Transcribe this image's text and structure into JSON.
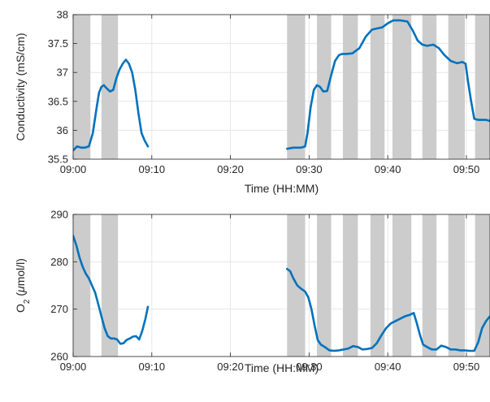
{
  "colors": {
    "line": "#0072bd",
    "band": "#cccccc",
    "grid": "#e6e6e6",
    "axis": "#262626"
  },
  "chart_data": [
    {
      "type": "line",
      "ylabel": "Conductivity (mS/cm)",
      "xlabel": "Time (HH:MM)",
      "xlim": [
        0,
        53
      ],
      "ylim": [
        35.5,
        38
      ],
      "x_ticks": [
        0,
        10,
        20,
        30,
        40,
        50
      ],
      "x_tick_labels": [
        "09:00",
        "09:10",
        "09:20",
        "09:30",
        "09:40",
        "09:50"
      ],
      "y_ticks": [
        35.5,
        36,
        36.5,
        37,
        37.5,
        38
      ],
      "y_tick_labels": [
        "35.5",
        "36",
        "36.5",
        "37",
        "37.5",
        "38"
      ],
      "grid": true,
      "shaded_intervals": [
        [
          0,
          2.2
        ],
        [
          3.6,
          5.7
        ],
        [
          27.2,
          29.5
        ],
        [
          31.0,
          32.8
        ],
        [
          34.3,
          36.2
        ],
        [
          37.8,
          39.6
        ],
        [
          40.6,
          43.0
        ],
        [
          44.4,
          46.2
        ],
        [
          47.7,
          49.8
        ],
        [
          51.1,
          53
        ]
      ],
      "segments": [
        {
          "x": [
            0.0,
            0.5,
            1.0,
            1.5,
            2.0,
            2.5,
            3.0,
            3.3,
            3.6,
            3.9,
            4.3,
            4.7,
            5.1,
            5.5,
            5.9,
            6.3,
            6.7,
            7.1,
            7.5,
            7.9,
            8.3,
            8.7,
            9.1,
            9.5
          ],
          "y": [
            35.65,
            35.72,
            35.7,
            35.7,
            35.72,
            35.95,
            36.4,
            36.65,
            36.75,
            36.78,
            36.72,
            36.67,
            36.7,
            36.9,
            37.05,
            37.15,
            37.22,
            37.15,
            37.0,
            36.7,
            36.3,
            35.95,
            35.82,
            35.72
          ]
        },
        {
          "x": [
            27.2,
            28.0,
            29.0,
            29.5,
            29.8,
            30.2,
            30.6,
            31.0,
            31.4,
            31.8,
            32.3,
            32.8,
            33.3,
            33.8,
            34.2,
            34.7,
            35.5,
            36.4,
            37.2,
            38.0,
            38.6,
            39.3,
            40.0,
            40.7,
            41.6,
            42.5,
            43.2,
            43.8,
            44.4,
            45.0,
            45.8,
            46.5,
            47.2,
            48.0,
            48.8,
            49.5,
            49.9,
            50.2,
            50.6,
            51.0,
            51.5,
            52.0,
            52.5,
            53.0
          ],
          "y": [
            35.68,
            35.7,
            35.7,
            35.72,
            35.95,
            36.4,
            36.7,
            36.78,
            36.75,
            36.67,
            36.68,
            36.95,
            37.2,
            37.3,
            37.32,
            37.32,
            37.33,
            37.42,
            37.62,
            37.74,
            37.76,
            37.78,
            37.85,
            37.9,
            37.9,
            37.88,
            37.72,
            37.55,
            37.48,
            37.46,
            37.48,
            37.42,
            37.3,
            37.2,
            37.16,
            37.18,
            37.15,
            36.85,
            36.5,
            36.2,
            36.18,
            36.18,
            36.18,
            36.16
          ]
        }
      ]
    },
    {
      "type": "line",
      "ylabel_main": "O",
      "ylabel_sub": "2",
      "ylabel_rest": " (",
      "ylabel_mu": "μ",
      "ylabel_unit": "mol/l)",
      "xlabel": "Time (HH:MM)",
      "xlim": [
        0,
        53
      ],
      "ylim": [
        260,
        290
      ],
      "x_ticks": [
        0,
        10,
        20,
        30,
        40,
        50
      ],
      "x_tick_labels": [
        "09:00",
        "09:10",
        "09:20",
        "09:30",
        "09:40",
        "09:50"
      ],
      "y_ticks": [
        260,
        270,
        280,
        290
      ],
      "y_tick_labels": [
        "260",
        "270",
        "280",
        "290"
      ],
      "grid": true,
      "shaded_intervals": [
        [
          0,
          2.2
        ],
        [
          3.6,
          5.7
        ],
        [
          27.2,
          29.5
        ],
        [
          31.0,
          32.8
        ],
        [
          34.3,
          36.2
        ],
        [
          37.8,
          39.6
        ],
        [
          40.6,
          43.0
        ],
        [
          44.4,
          46.2
        ],
        [
          47.7,
          49.8
        ],
        [
          51.1,
          53
        ]
      ],
      "segments": [
        {
          "x": [
            0.0,
            0.4,
            0.8,
            1.2,
            1.6,
            2.0,
            2.4,
            2.8,
            3.2,
            3.6,
            4.0,
            4.4,
            4.8,
            5.2,
            5.6,
            6.0,
            6.4,
            6.8,
            7.2,
            7.6,
            8.0,
            8.4,
            8.8,
            9.2,
            9.5
          ],
          "y": [
            285.5,
            283.5,
            281.0,
            279.0,
            277.5,
            276.5,
            275.0,
            273.5,
            271.0,
            268.5,
            266.0,
            264.3,
            263.8,
            263.8,
            263.6,
            262.7,
            262.8,
            263.5,
            263.8,
            264.2,
            264.3,
            263.6,
            265.5,
            268.0,
            270.5
          ]
        },
        {
          "x": [
            27.2,
            27.6,
            28.0,
            28.5,
            29.0,
            29.5,
            29.9,
            30.3,
            30.7,
            31.1,
            31.5,
            32.0,
            32.6,
            33.2,
            33.8,
            34.4,
            35.0,
            35.6,
            36.2,
            36.8,
            37.4,
            38.0,
            38.6,
            39.2,
            39.8,
            40.4,
            41.0,
            41.6,
            42.2,
            42.8,
            43.3,
            43.7,
            44.1,
            44.5,
            45.0,
            45.6,
            46.2,
            46.8,
            47.4,
            48.0,
            48.6,
            49.2,
            49.8,
            50.4,
            51.0,
            51.5,
            52.0,
            52.5,
            53.0
          ],
          "y": [
            278.5,
            278.0,
            276.5,
            275.0,
            274.3,
            273.7,
            272.5,
            270.0,
            266.5,
            263.5,
            262.5,
            262.0,
            261.3,
            261.2,
            261.3,
            261.5,
            261.7,
            262.2,
            262.0,
            261.5,
            261.6,
            261.8,
            262.8,
            264.5,
            266.0,
            267.0,
            267.5,
            268.0,
            268.5,
            268.8,
            269.2,
            267.0,
            264.5,
            262.5,
            262.0,
            261.5,
            261.5,
            262.3,
            262.0,
            261.5,
            261.5,
            261.3,
            261.3,
            261.2,
            261.2,
            263.0,
            266.0,
            267.5,
            268.5
          ]
        }
      ]
    }
  ]
}
